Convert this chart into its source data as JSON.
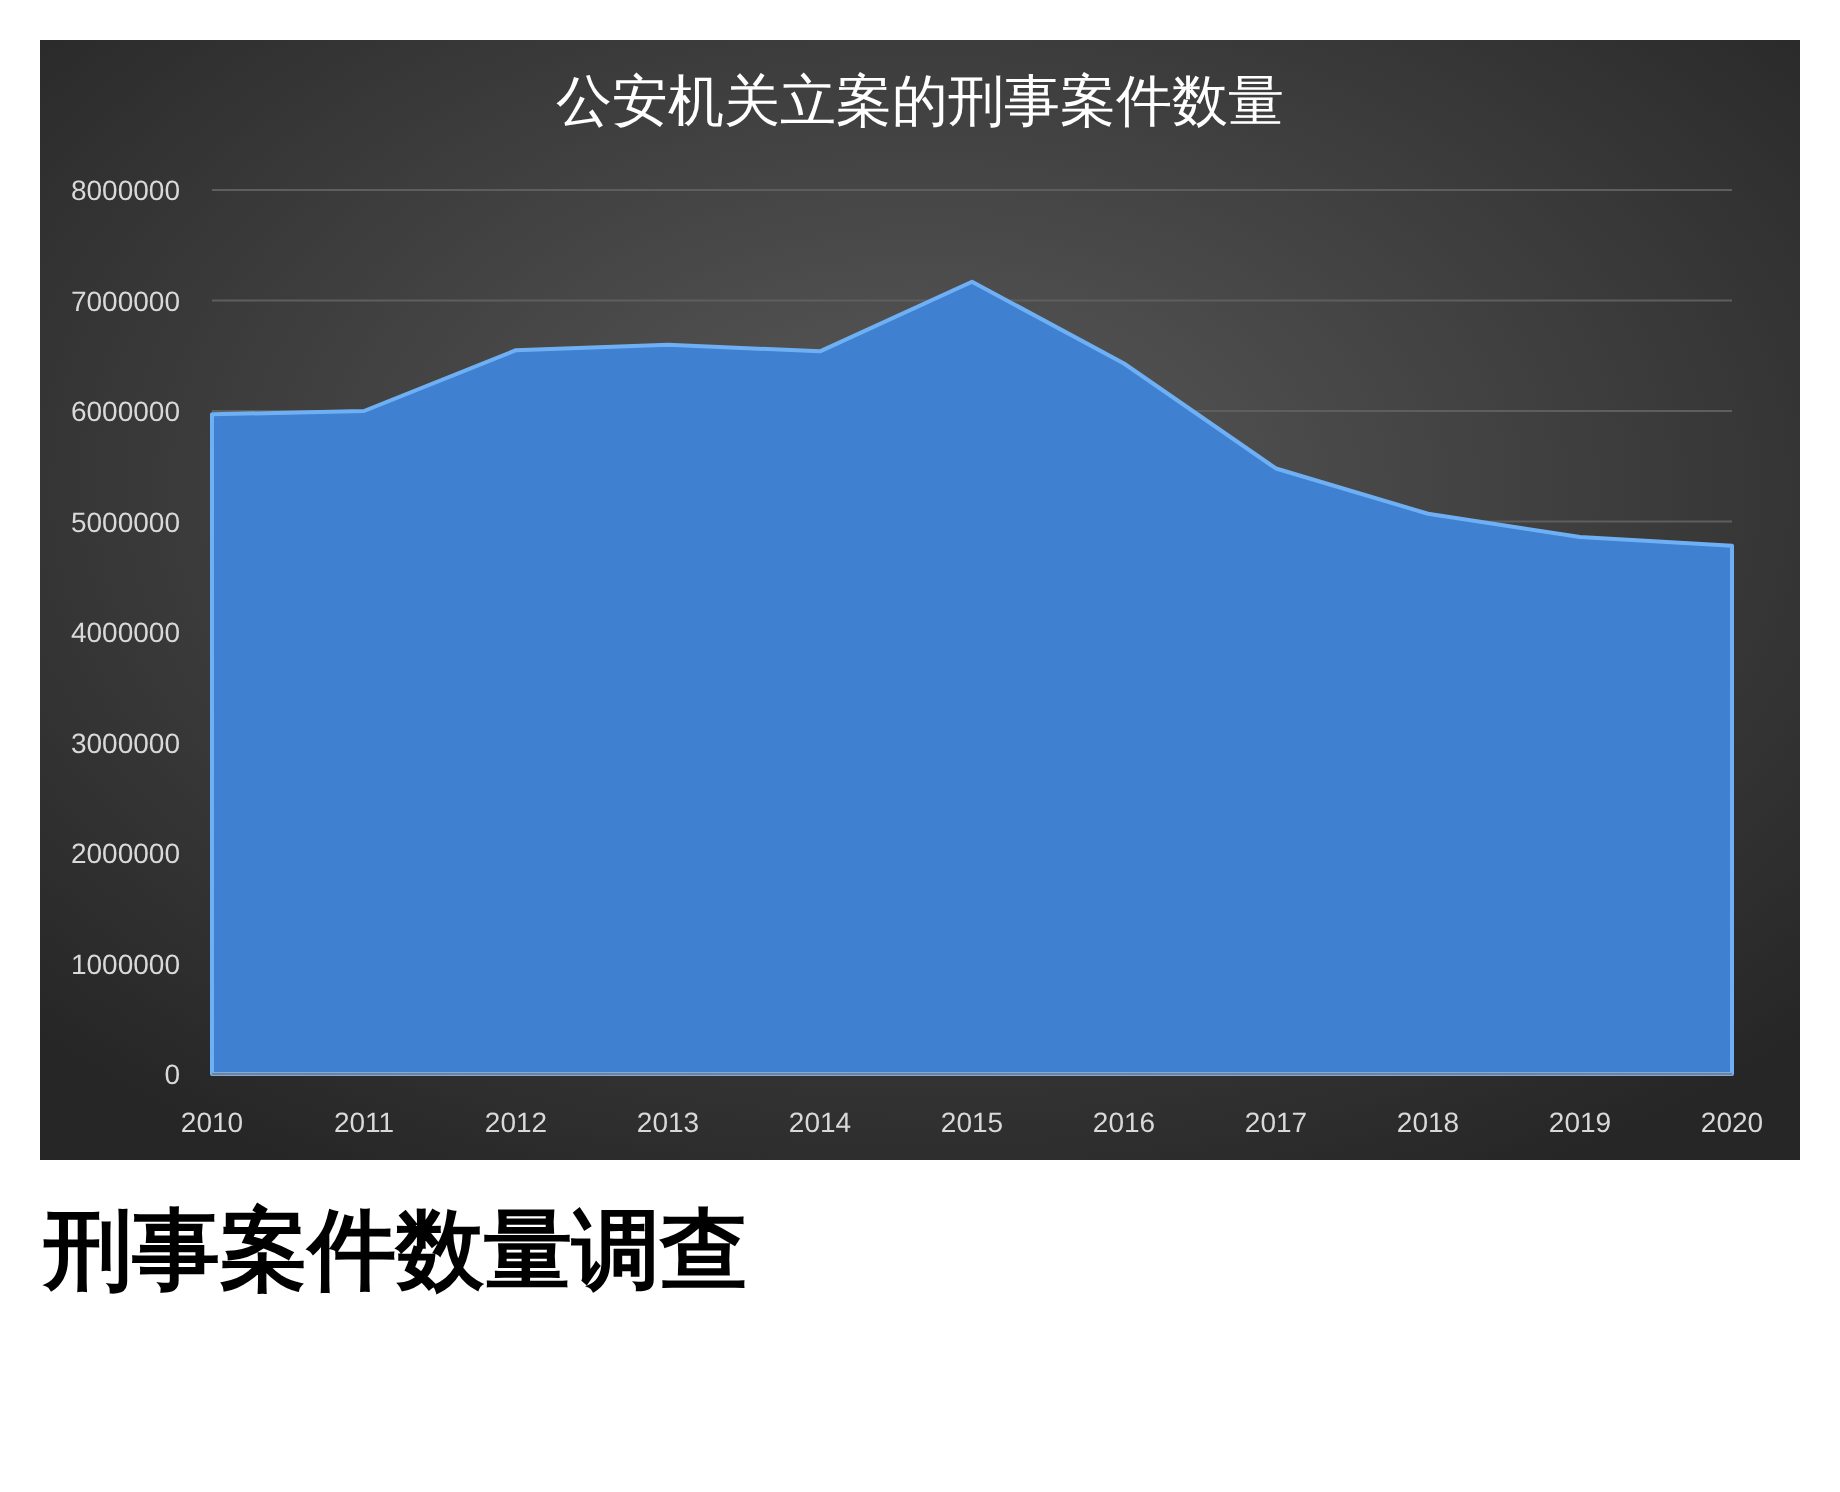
{
  "chart_data": {
    "type": "area",
    "title": "公安机关立案的刑事案件数量",
    "annotations": [
      "刑事案件数量调查"
    ],
    "x": [
      2010,
      2011,
      2012,
      2013,
      2014,
      2015,
      2016,
      2017,
      2018,
      2019,
      2020
    ],
    "series": [
      {
        "color": "#3f80d0",
        "values": [
          5970000,
          6000000,
          6550000,
          6600000,
          6540000,
          7170000,
          6430000,
          5480000,
          5070000,
          4860000,
          4780000
        ]
      }
    ],
    "xlim": [
      2010,
      2020
    ],
    "xticks": [
      2010,
      2011,
      2012,
      2013,
      2014,
      2015,
      2016,
      2017,
      2018,
      2019,
      2020
    ],
    "ylim": [
      0,
      8000000
    ],
    "yticks": [
      0,
      1000000,
      2000000,
      3000000,
      4000000,
      5000000,
      6000000,
      7000000,
      8000000
    ],
    "grid": "y"
  }
}
